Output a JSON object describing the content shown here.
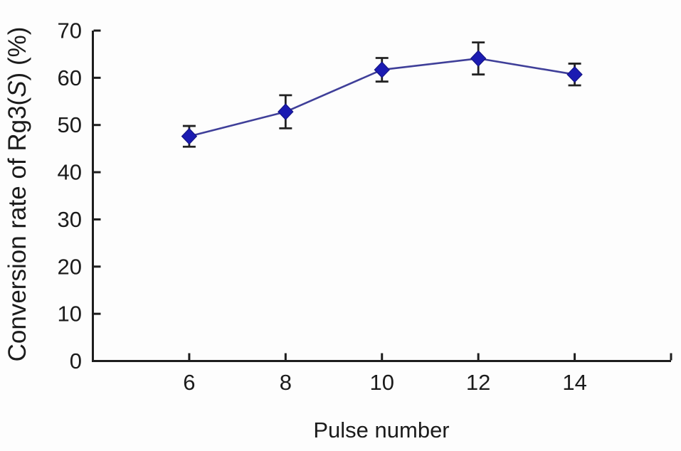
{
  "figure": {
    "ylabel_prefix": "Conversion rate of Rg3(",
    "ylabel_stereo": "S",
    "ylabel_suffix": ") (%)"
  },
  "chart_data": {
    "type": "line",
    "title": "",
    "xlabel": "Pulse number",
    "ylabel": "Conversion rate of Rg3(S) (%)",
    "x": [
      6,
      8,
      10,
      12,
      14
    ],
    "y": [
      47.6,
      52.8,
      61.7,
      64.1,
      60.7
    ],
    "yerr": [
      2.2,
      3.5,
      2.5,
      3.4,
      2.3
    ],
    "xlim": [
      4,
      16
    ],
    "ylim": [
      0,
      70
    ],
    "x_ticks": [
      6,
      8,
      10,
      12,
      14
    ],
    "x_end_tick": 16,
    "y_ticks": [
      0,
      10,
      20,
      30,
      40,
      50,
      60,
      70
    ],
    "grid": false,
    "legend_position": "none",
    "marker": "diamond",
    "line_style": "solid",
    "colors": {
      "marker": "#1b1bb2",
      "marker_edge": "#12127e",
      "line": "#3f3f99",
      "error_bar": "#222222",
      "axis": "#1d1d1d",
      "text": "#1b1b1b",
      "background": "#fdfdfd"
    }
  }
}
